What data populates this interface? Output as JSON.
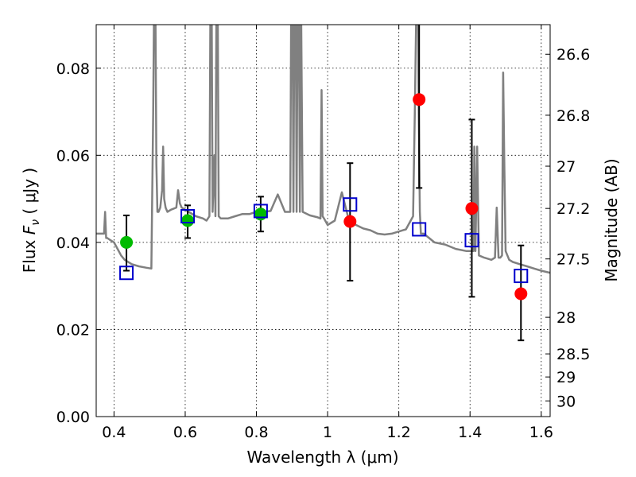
{
  "chart_data": {
    "type": "scatter",
    "xlabel": "Wavelength  λ (μm)",
    "ylabel_left": {
      "text": "Flux  ",
      "sym": "F",
      "sub": "ν",
      "unit": "  ( μJy )"
    },
    "ylabel_right": "Magnitude (AB)",
    "xlim": [
      0.35,
      1.625
    ],
    "ylim": [
      0.0,
      0.09
    ],
    "grid": true,
    "x_ticks": [
      0.4,
      0.6,
      0.8,
      1.0,
      1.2,
      1.4,
      1.6
    ],
    "x_tick_labels": [
      "0.4",
      "0.6",
      "0.8",
      "1",
      "1.2",
      "1.4",
      "1.6"
    ],
    "y_ticks": [
      0.0,
      0.02,
      0.04,
      0.06,
      0.08
    ],
    "y_tick_labels": [
      "0.00",
      "0.02",
      "0.04",
      "0.06",
      "0.08"
    ],
    "right_axis_ticks": [
      {
        "flux": 0.0832,
        "label": "26.6"
      },
      {
        "flux": 0.0692,
        "label": "26.8"
      },
      {
        "flux": 0.0575,
        "label": "27"
      },
      {
        "flux": 0.0478,
        "label": "27.2"
      },
      {
        "flux": 0.0362,
        "label": "27.5"
      },
      {
        "flux": 0.0228,
        "label": "28"
      },
      {
        "flux": 0.0144,
        "label": "28.5"
      },
      {
        "flux": 0.0091,
        "label": "29"
      },
      {
        "flux": 0.0036,
        "label": "30"
      }
    ],
    "colors": {
      "model": "#808080",
      "green": "#00bb00",
      "red": "#ff0000",
      "box": "#0000cc",
      "errorbar": "#000000"
    },
    "series": [
      {
        "marker": "circle",
        "color": "#00bb00",
        "points": [
          {
            "x": 0.435,
            "y": 0.04,
            "err_low": 0.0335,
            "err_high": 0.0462
          },
          {
            "x": 0.607,
            "y": 0.045,
            "err_low": 0.041,
            "err_high": 0.0485
          },
          {
            "x": 0.812,
            "y": 0.0465,
            "err_low": 0.0425,
            "err_high": 0.0505
          }
        ]
      },
      {
        "marker": "circle",
        "color": "#ff0000",
        "points": [
          {
            "x": 1.063,
            "y": 0.0448,
            "err_low": 0.0312,
            "err_high": 0.0582
          },
          {
            "x": 1.257,
            "y": 0.0728,
            "err_low": 0.0525,
            "err_high": 0.0902
          },
          {
            "x": 1.405,
            "y": 0.0478,
            "err_low": 0.0275,
            "err_high": 0.0682
          },
          {
            "x": 1.543,
            "y": 0.0282,
            "err_low": 0.0175,
            "err_high": 0.0393
          }
        ]
      },
      {
        "marker": "open-square",
        "color": "#0000cc",
        "points": [
          {
            "x": 0.435,
            "y": 0.033
          },
          {
            "x": 0.607,
            "y": 0.046
          },
          {
            "x": 0.812,
            "y": 0.0472
          },
          {
            "x": 1.063,
            "y": 0.0487
          },
          {
            "x": 1.257,
            "y": 0.043
          },
          {
            "x": 1.405,
            "y": 0.0405
          },
          {
            "x": 1.543,
            "y": 0.0323
          }
        ]
      }
    ],
    "model_spectrum": {
      "x": [
        0.35,
        0.365,
        0.372,
        0.375,
        0.378,
        0.381,
        0.39,
        0.4,
        0.41,
        0.42,
        0.43,
        0.45,
        0.47,
        0.49,
        0.505,
        0.51,
        0.513,
        0.516,
        0.519,
        0.522,
        0.525,
        0.53,
        0.535,
        0.538,
        0.541,
        0.545,
        0.55,
        0.56,
        0.575,
        0.58,
        0.585,
        0.59,
        0.6,
        0.61,
        0.63,
        0.65,
        0.66,
        0.668,
        0.671,
        0.674,
        0.677,
        0.682,
        0.685,
        0.688,
        0.691,
        0.694,
        0.7,
        0.72,
        0.74,
        0.76,
        0.78,
        0.8,
        0.82,
        0.84,
        0.86,
        0.88,
        0.895,
        0.898,
        0.901,
        0.904,
        0.907,
        0.91,
        0.913,
        0.916,
        0.919,
        0.922,
        0.925,
        0.93,
        0.95,
        0.97,
        0.98,
        0.983,
        0.986,
        0.99,
        1.0,
        1.02,
        1.04,
        1.06,
        1.08,
        1.1,
        1.12,
        1.14,
        1.16,
        1.18,
        1.2,
        1.22,
        1.24,
        1.245,
        1.25,
        1.253,
        1.256,
        1.259,
        1.262,
        1.27,
        1.3,
        1.33,
        1.36,
        1.39,
        1.41,
        1.412,
        1.415,
        1.42,
        1.425,
        1.44,
        1.46,
        1.47,
        1.475,
        1.48,
        1.485,
        1.49,
        1.493,
        1.496,
        1.5,
        1.51,
        1.52,
        1.54,
        1.56,
        1.58,
        1.6,
        1.625
      ],
      "y": [
        0.042,
        0.042,
        0.042,
        0.047,
        0.041,
        0.041,
        0.0405,
        0.04,
        0.0385,
        0.037,
        0.036,
        0.035,
        0.0345,
        0.0342,
        0.034,
        0.07,
        0.1,
        0.1,
        0.058,
        0.047,
        0.047,
        0.048,
        0.052,
        0.062,
        0.05,
        0.048,
        0.047,
        0.0475,
        0.048,
        0.052,
        0.049,
        0.048,
        0.0475,
        0.047,
        0.046,
        0.0455,
        0.045,
        0.046,
        0.1,
        0.1,
        0.047,
        0.06,
        0.046,
        0.1,
        0.1,
        0.046,
        0.0455,
        0.0455,
        0.046,
        0.0465,
        0.0465,
        0.047,
        0.047,
        0.0472,
        0.051,
        0.047,
        0.047,
        0.1,
        0.1,
        0.047,
        0.1,
        0.1,
        0.047,
        0.1,
        0.1,
        0.047,
        0.1,
        0.047,
        0.0462,
        0.0458,
        0.0455,
        0.075,
        0.046,
        0.0455,
        0.044,
        0.045,
        0.0515,
        0.045,
        0.044,
        0.0432,
        0.0428,
        0.042,
        0.0418,
        0.042,
        0.0425,
        0.043,
        0.046,
        0.07,
        0.1,
        0.1,
        0.07,
        0.047,
        0.042,
        0.042,
        0.04,
        0.0395,
        0.0385,
        0.038,
        0.038,
        0.062,
        0.038,
        0.062,
        0.037,
        0.0365,
        0.036,
        0.0365,
        0.048,
        0.0365,
        0.0365,
        0.037,
        0.079,
        0.06,
        0.038,
        0.036,
        0.0355,
        0.035,
        0.0345,
        0.034,
        0.0335,
        0.033
      ]
    }
  }
}
